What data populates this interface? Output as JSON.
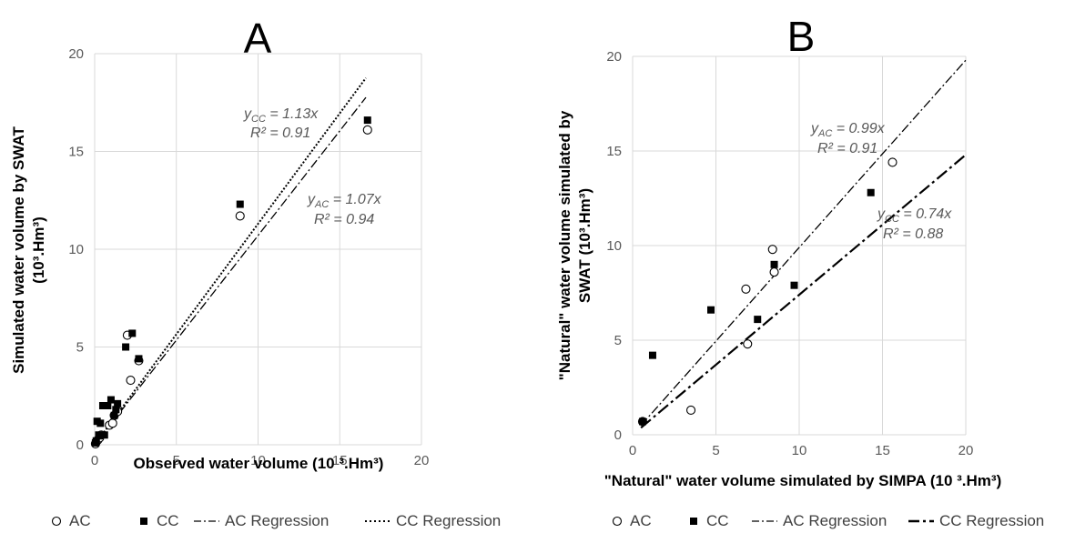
{
  "chart_data": [
    {
      "type": "scatter",
      "title": "A",
      "xlabel": "Observed water volume (10 ³.Hm³)",
      "ylabel_line1": "Simulated water volume  by SWAT",
      "ylabel_line2": "(10³.Hm³)",
      "xlim": [
        0,
        20
      ],
      "ylim": [
        0,
        20
      ],
      "xticks": [
        "0",
        "5",
        "10",
        "15",
        "20"
      ],
      "yticks": [
        "0",
        "5",
        "10",
        "15",
        "20"
      ],
      "grid": true,
      "legend_position": "bottom",
      "series": [
        {
          "name": "AC",
          "marker": "open-circle",
          "x": [
            0.05,
            0.1,
            0.2,
            0.3,
            0.4,
            0.9,
            1.1,
            1.2,
            1.4,
            2.0,
            2.2,
            2.7,
            8.9,
            16.7
          ],
          "y": [
            0.05,
            0.15,
            0.25,
            0.35,
            0.5,
            1.0,
            1.1,
            1.5,
            1.7,
            5.6,
            3.3,
            4.3,
            11.7,
            16.1
          ]
        },
        {
          "name": "CC",
          "marker": "filled-square",
          "x": [
            0.05,
            0.1,
            0.15,
            0.25,
            0.35,
            0.5,
            0.6,
            0.8,
            1.0,
            1.2,
            1.3,
            1.4,
            1.9,
            2.3,
            2.7,
            8.9,
            16.7
          ],
          "y": [
            0.1,
            0.2,
            1.2,
            0.5,
            1.1,
            2.0,
            0.5,
            2.0,
            2.3,
            1.5,
            1.8,
            2.1,
            5.0,
            5.7,
            4.4,
            12.3,
            16.6
          ]
        },
        {
          "name": "AC Regression",
          "line": "dash-dot",
          "slope": 1.07
        },
        {
          "name": "CC Regression",
          "line": "dotted",
          "slope": 1.13
        }
      ],
      "annotations": [
        {
          "text": "yCC = 1.13x",
          "sub": "CC"
        },
        {
          "text": "R² = 0.91"
        },
        {
          "text": "yAC = 1.07x",
          "sub": "AC"
        },
        {
          "text": "R² = 0.94"
        }
      ]
    },
    {
      "type": "scatter",
      "title": "B",
      "xlabel": "\"Natural\" water volume simulated by SIMPA (10 ³.Hm³)",
      "ylabel_line1": "\"Natural\" water volume simulated by",
      "ylabel_line2": "SWAT (10³.Hm³)",
      "xlim": [
        0,
        20
      ],
      "ylim": [
        0,
        20
      ],
      "xticks": [
        "0",
        "5",
        "10",
        "15",
        "20"
      ],
      "yticks": [
        "0",
        "5",
        "10",
        "15",
        "20"
      ],
      "grid": true,
      "legend_position": "bottom",
      "series": [
        {
          "name": "AC",
          "marker": "open-circle",
          "x": [
            0.6,
            3.5,
            6.8,
            6.9,
            8.4,
            8.5,
            15.6
          ],
          "y": [
            0.7,
            1.3,
            7.7,
            4.8,
            9.8,
            8.6,
            14.4
          ]
        },
        {
          "name": "CC",
          "marker": "filled-square",
          "x": [
            0.6,
            1.2,
            4.7,
            7.5,
            8.5,
            9.7,
            14.3
          ],
          "y": [
            0.7,
            4.2,
            6.6,
            6.1,
            9.0,
            7.9,
            12.8
          ]
        },
        {
          "name": "AC Regression",
          "line": "dash-dot",
          "slope": 0.99
        },
        {
          "name": "CC Regression",
          "line": "long-dash-dot",
          "slope": 0.74
        }
      ],
      "annotations": [
        {
          "text": "yAC = 0.99x",
          "sub": "AC"
        },
        {
          "text": "R² = 0.91"
        },
        {
          "text": "yCC = 0.74x",
          "sub": "CC"
        },
        {
          "text": "R² = 0.88"
        }
      ]
    }
  ],
  "legends": {
    "A": {
      "ac": "AC",
      "cc": "CC",
      "ac_reg": "AC Regression",
      "cc_reg": "CC Regression"
    },
    "B": {
      "ac": "AC",
      "cc": "CC",
      "ac_reg": "AC Regression",
      "cc_reg": "CC Regression"
    }
  }
}
